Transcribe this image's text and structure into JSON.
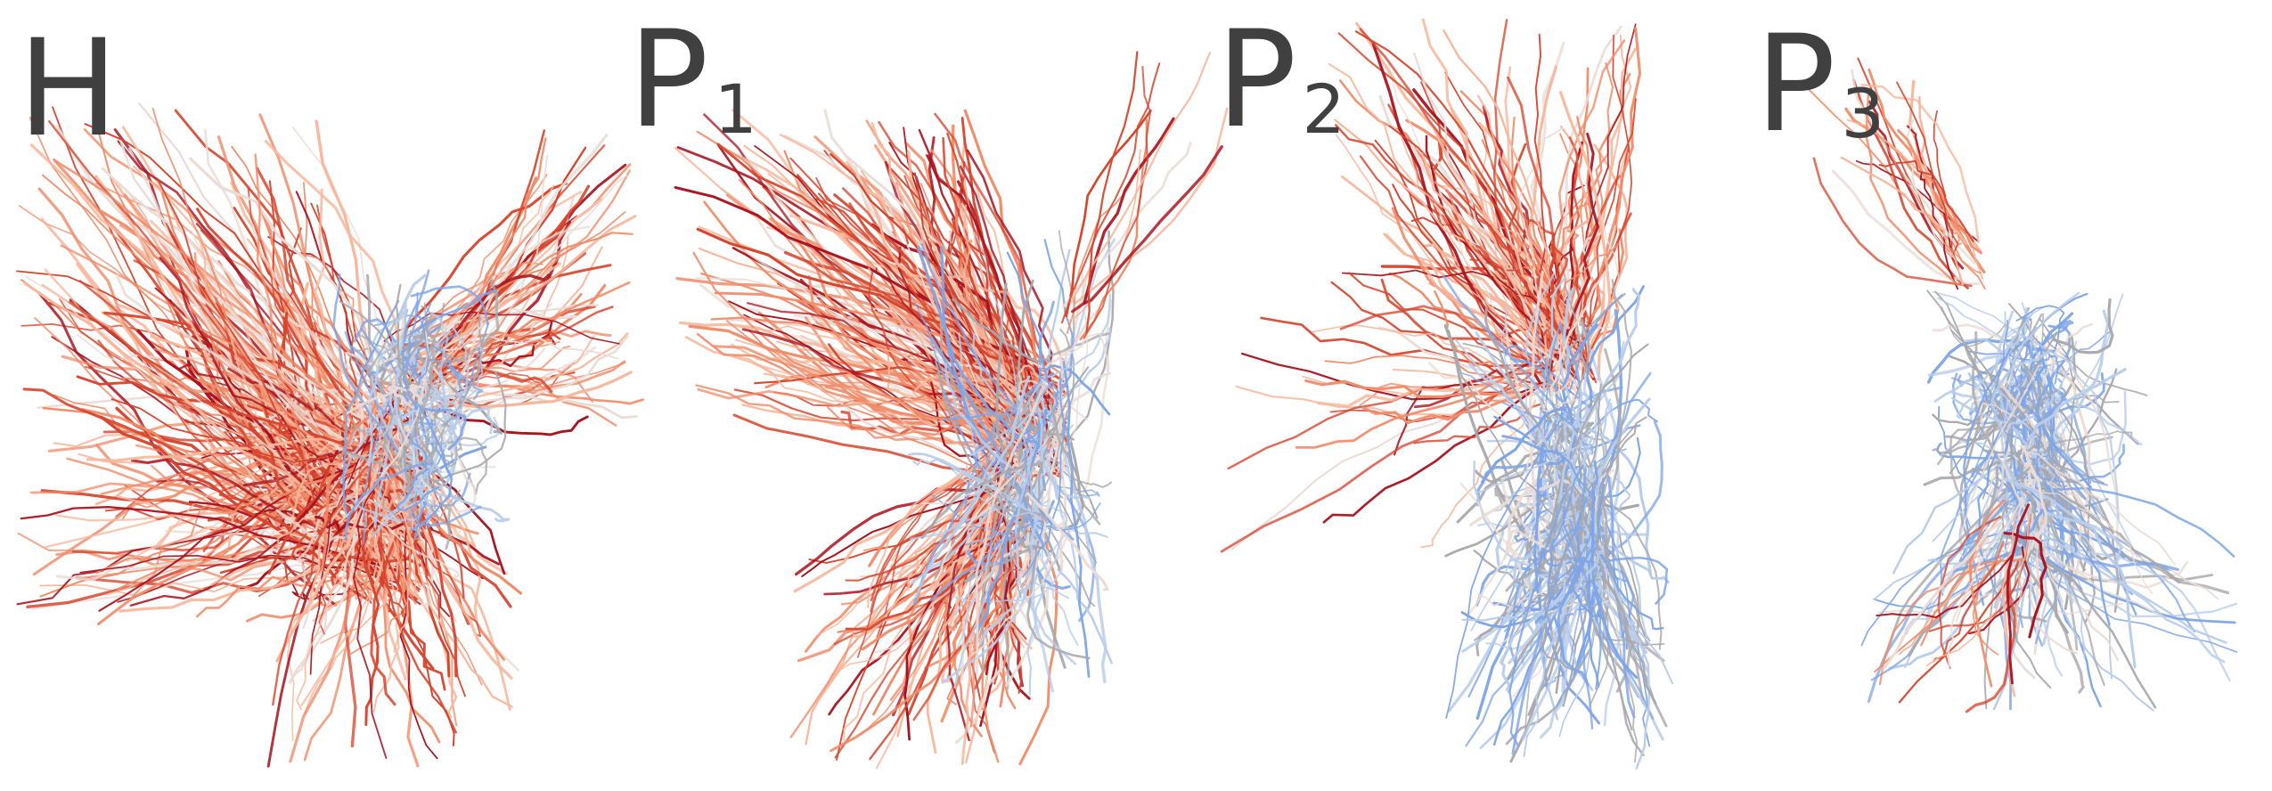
{
  "figure": {
    "background": "#ffffff",
    "label_color": "#404040",
    "palette": {
      "dark_red": "#a8121e",
      "red": "#d6452e",
      "salmon": "#f08c6a",
      "peach": "#f7b79c",
      "pale": "#eadcd6",
      "gray": "#a9a9ad",
      "light_blue": "#b9cdea",
      "blue": "#7fa5e6"
    },
    "panels": [
      {
        "id": "H",
        "label": "H",
        "subscript": "",
        "blue_fraction": 0.18,
        "red_fraction": 0.82
      },
      {
        "id": "P1",
        "label": "P",
        "subscript": "1",
        "blue_fraction": 0.35,
        "red_fraction": 0.65
      },
      {
        "id": "P2",
        "label": "P",
        "subscript": "2",
        "blue_fraction": 0.55,
        "red_fraction": 0.45
      },
      {
        "id": "P3",
        "label": "P",
        "subscript": "3",
        "blue_fraction": 0.8,
        "red_fraction": 0.2
      }
    ]
  }
}
